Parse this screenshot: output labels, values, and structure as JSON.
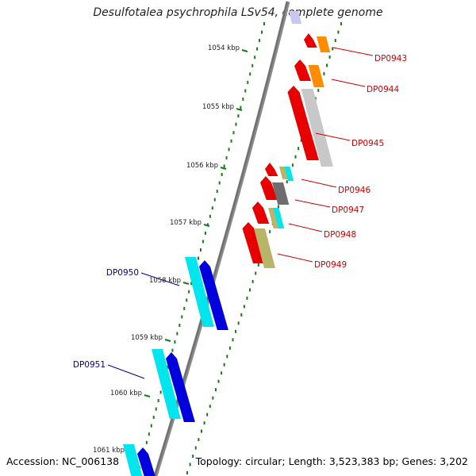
{
  "title": "Desulfotalea psychrophila LSv54, complete genome",
  "footer": {
    "accession": "Accession: NC_006138",
    "summary": "Topology: circular; Length: 3,523,383 bp; Genes: 3,202"
  },
  "colors": {
    "backbone": "#6e6e6e",
    "tick": "#1a7a1a",
    "label_right": "#cc0000",
    "label_left": "#00008b",
    "red": "#e60000",
    "orange": "#ff8c00",
    "lightgray": "#c8c8c8",
    "darkgray": "#6e6e6e",
    "khaki": "#b8b46a",
    "cyan": "#00e5ee",
    "blue": "#0000dd",
    "lavender": "#c8c8f0"
  },
  "ruler": [
    {
      "label": "1054 kbp"
    },
    {
      "label": "1055 kbp"
    },
    {
      "label": "1056 kbp"
    },
    {
      "label": "1057 kbp"
    },
    {
      "label": "1058 kbp"
    },
    {
      "label": "1059 kbp"
    },
    {
      "label": "1060 kbp"
    },
    {
      "label": "1061 kbp"
    }
  ],
  "genes_right": [
    {
      "name": "DP0943"
    },
    {
      "name": "DP0944"
    },
    {
      "name": "DP0945"
    },
    {
      "name": "DP0946"
    },
    {
      "name": "DP0947"
    },
    {
      "name": "DP0948"
    },
    {
      "name": "DP0949"
    }
  ],
  "genes_left": [
    {
      "name": "DP0950"
    },
    {
      "name": "DP0951"
    }
  ]
}
